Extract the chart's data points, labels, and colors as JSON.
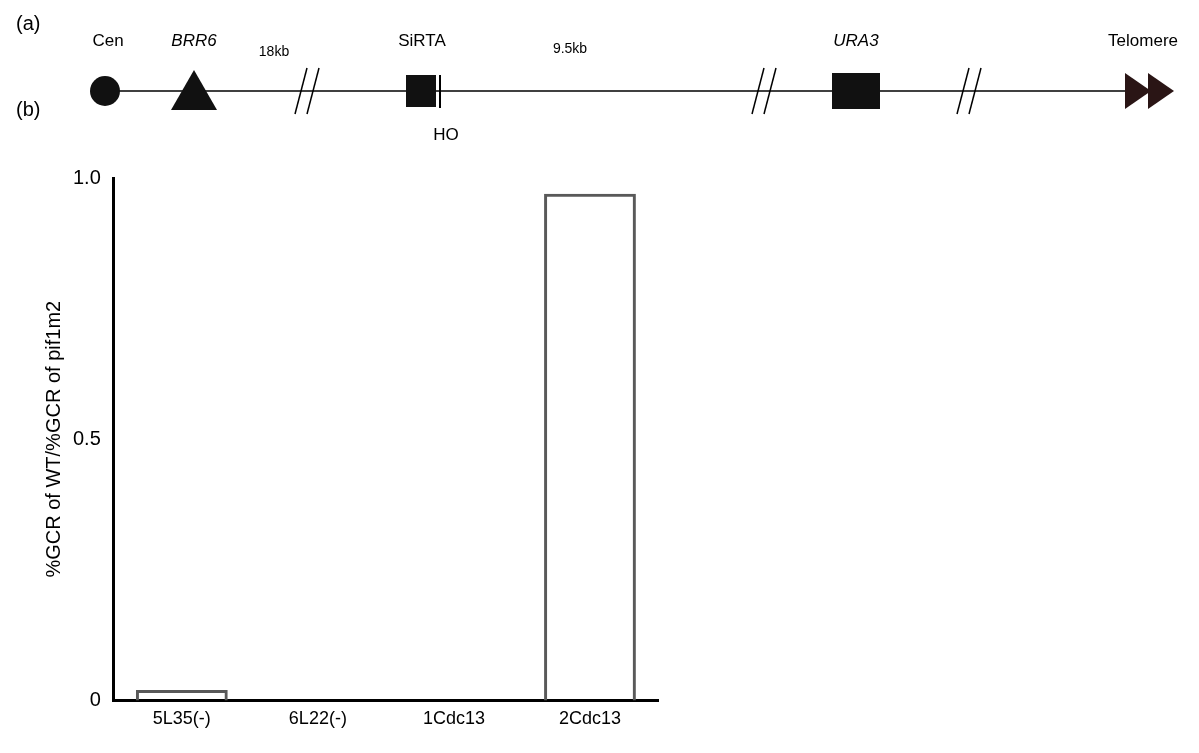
{
  "chart_data": {
    "type": "bar",
    "ylabel": "%GCR of WT/%GCR of pif1m2",
    "categories": [
      "5L35(-)",
      "6L22(-)",
      "1Cdc13",
      "2Cdc13"
    ],
    "values": [
      0.02,
      0,
      0,
      0.97
    ],
    "color": "#595959",
    "ylim": [
      0,
      1
    ],
    "yticks": [
      0,
      0.5,
      {
        "value": 1,
        "label": "1.0"
      }
    ],
    "grid": false,
    "legend": false,
    "annotations": [
      "(a)",
      "Cen",
      "BRR6",
      "18kb",
      "SiRTA",
      "9.5kb",
      "URA3",
      "Telomere",
      "HO",
      "(b)"
    ]
  }
}
